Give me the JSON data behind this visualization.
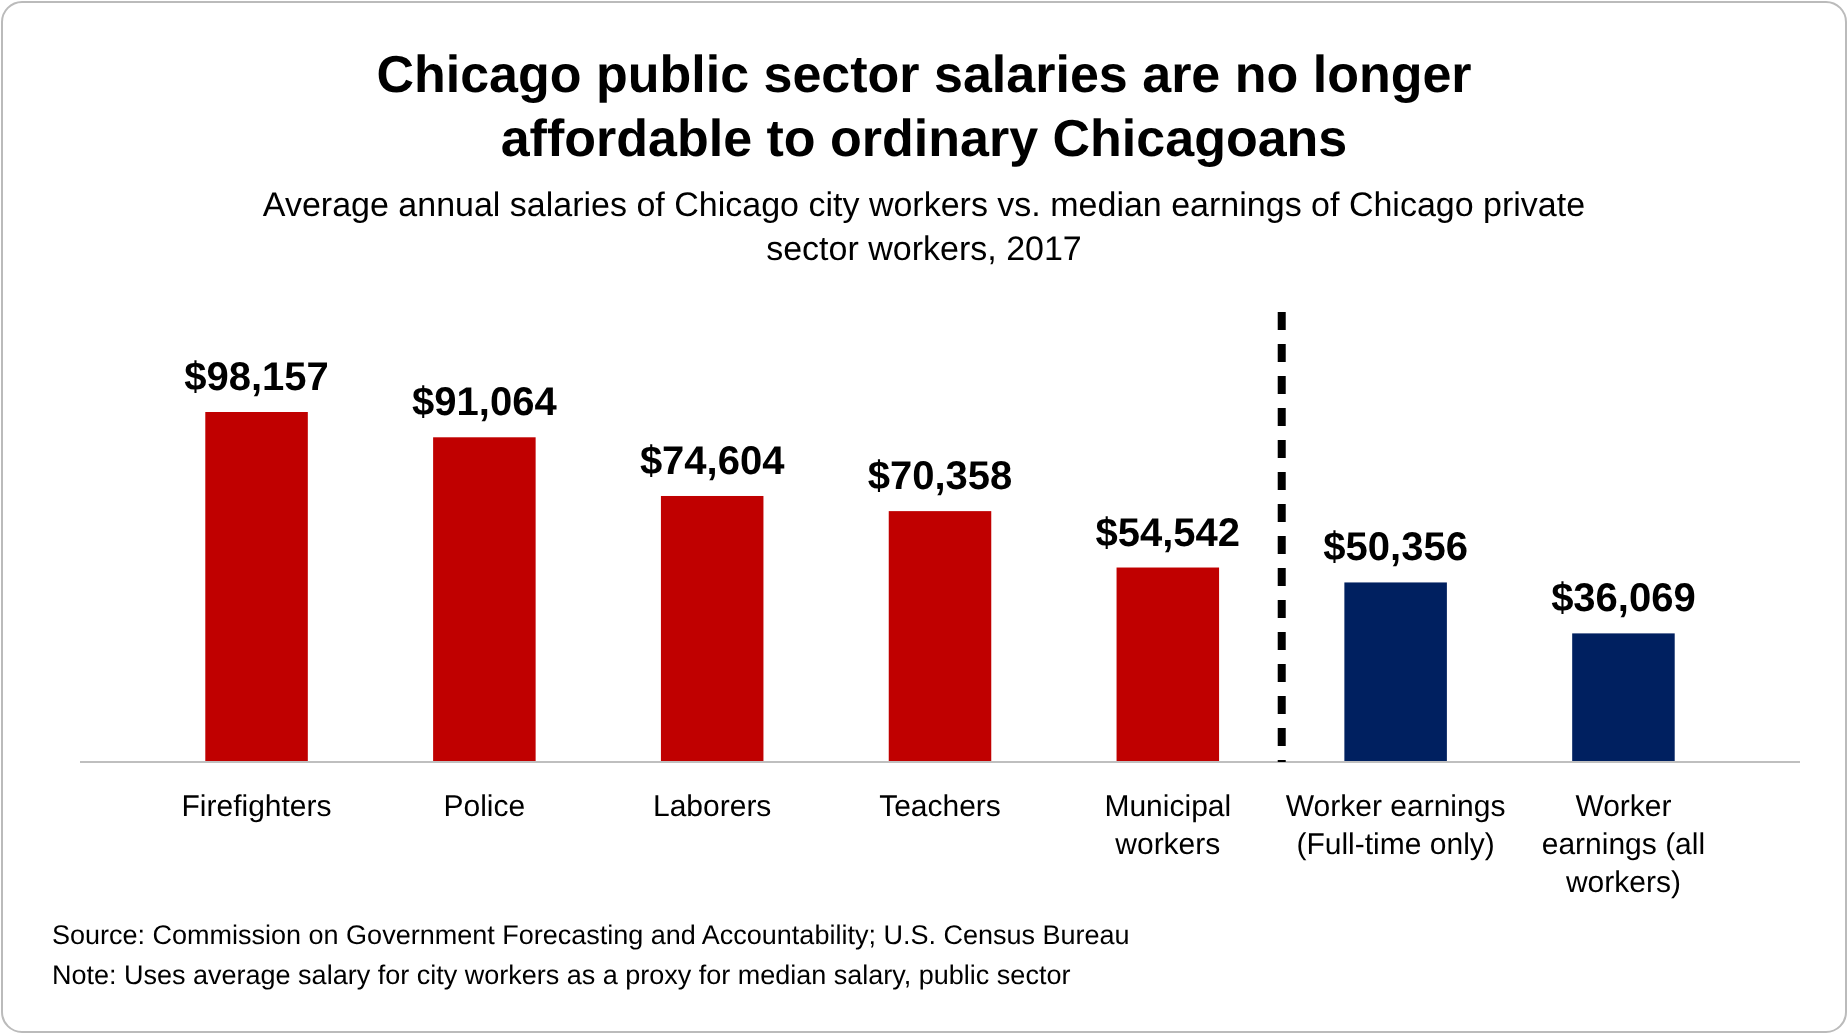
{
  "chart_data": {
    "type": "bar",
    "title": "Chicago public sector salaries are no longer\naffordable to ordinary Chicagoans",
    "subtitle": "Average annual salaries of Chicago city workers vs. median earnings of Chicago private\nsector workers, 2017",
    "categories": [
      "Firefighters",
      "Police",
      "Laborers",
      "Teachers",
      "Municipal\nworkers",
      "Worker earnings\n(Full-time only)",
      "Worker\nearnings (all\nworkers)"
    ],
    "values": [
      98157,
      91064,
      74604,
      70358,
      54542,
      50356,
      36069
    ],
    "colors": [
      "#c00000",
      "#c00000",
      "#c00000",
      "#c00000",
      "#c00000",
      "#002060",
      "#002060"
    ],
    "value_labels": [
      "$98,157",
      "$91,064",
      "$74,604",
      "$70,358",
      "$54,542",
      "$50,356",
      "$36,069"
    ],
    "annotations": [
      "Source: Commission on Government Forecasting and Accountability; U.S. Census Bureau",
      "Note: Uses average salary for city workers as a proxy for median salary, public sector"
    ]
  }
}
